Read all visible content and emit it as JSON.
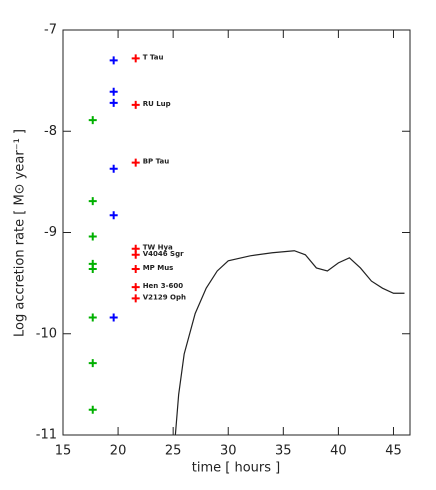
{
  "chart_data": {
    "type": "scatter",
    "xlabel": "time [ hours ]",
    "ylabel": "Log accretion rate [ M⊙ year⁻¹ ]",
    "xlim": [
      15,
      46.5
    ],
    "ylim": [
      -11,
      -7
    ],
    "xticks": [
      15,
      20,
      25,
      30,
      35,
      40,
      45
    ],
    "yticks": [
      -11,
      -10,
      -9,
      -8,
      -7
    ],
    "series": [
      {
        "mode": "markers",
        "color": "#00b000",
        "x": [
          17.7,
          17.7,
          17.7,
          17.7,
          17.7,
          17.7,
          17.7,
          17.7
        ],
        "values": [
          -7.89,
          -8.69,
          -9.04,
          -9.31,
          -9.36,
          -9.84,
          -10.29,
          -10.75
        ]
      },
      {
        "mode": "markers",
        "color": "#0000ff",
        "x": [
          19.6,
          19.6,
          19.6,
          19.6,
          19.6,
          19.6
        ],
        "values": [
          -7.3,
          -7.61,
          -7.72,
          -8.37,
          -8.83,
          -9.84
        ]
      },
      {
        "mode": "markers",
        "color": "#ff0000",
        "x": [
          21.6,
          21.6,
          21.6,
          21.6,
          21.6,
          21.6,
          21.6,
          21.6
        ],
        "values": [
          -7.28,
          -7.74,
          -8.31,
          -9.16,
          -9.22,
          -9.36,
          -9.54,
          -9.65
        ],
        "labels": [
          "T Tau",
          "RU Lup",
          "BP Tau",
          "TW Hya",
          "V4046 Sgr",
          "MP Mus",
          "Hen 3-600",
          "V2129 Oph"
        ]
      },
      {
        "mode": "line",
        "color": "#222222",
        "x": [
          25.2,
          25.5,
          26,
          27,
          28,
          29,
          30,
          32,
          34,
          36,
          37,
          38,
          39,
          40,
          41,
          42,
          43,
          44,
          45,
          46
        ],
        "values": [
          -11,
          -10.6,
          -10.2,
          -9.8,
          -9.55,
          -9.38,
          -9.28,
          -9.23,
          -9.2,
          -9.18,
          -9.22,
          -9.35,
          -9.38,
          -9.3,
          -9.25,
          -9.35,
          -9.48,
          -9.55,
          -9.6,
          -9.6
        ]
      }
    ]
  }
}
